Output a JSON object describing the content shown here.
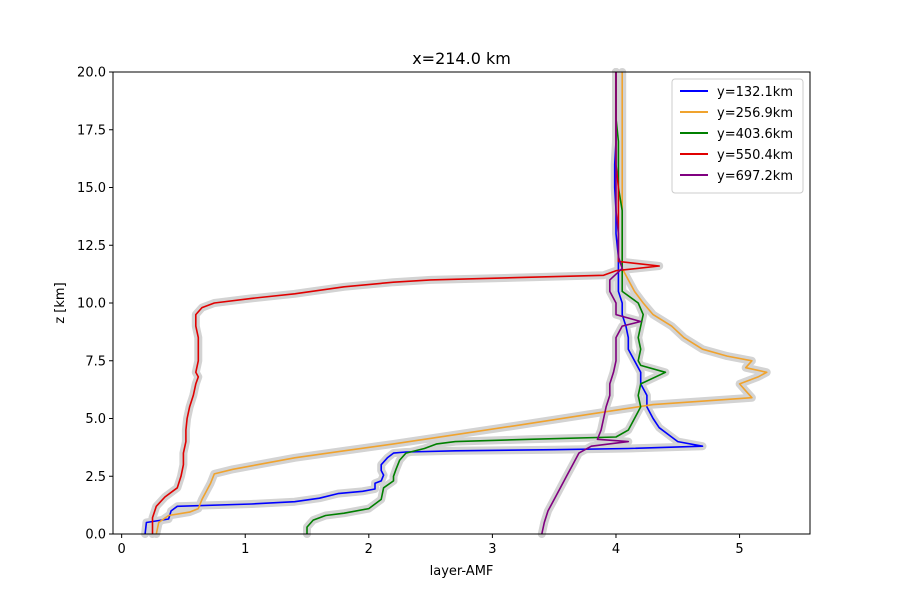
{
  "chart_data": {
    "type": "line",
    "title": "x=214.0 km",
    "xlabel": "layer-AMF",
    "ylabel": "z [km]",
    "xlim": [
      -0.07,
      5.57
    ],
    "ylim": [
      0,
      20
    ],
    "xticks": [
      0,
      1,
      2,
      3,
      4,
      5
    ],
    "xtick_labels": [
      "0",
      "1",
      "2",
      "3",
      "4",
      "5"
    ],
    "yticks": [
      0,
      2.5,
      5,
      7.5,
      10,
      12.5,
      15,
      17.5,
      20
    ],
    "ytick_labels": [
      "0.0",
      "2.5",
      "5.0",
      "7.5",
      "10.0",
      "12.5",
      "15.0",
      "17.5",
      "20.0"
    ],
    "grid": false,
    "legend_position": "top-right",
    "uncertainty_band_color": "#d3d3d3",
    "series": [
      {
        "name": "y=132.1km",
        "color": "#0000ff",
        "points": [
          [
            0.19,
            0
          ],
          [
            0.2,
            0.5
          ],
          [
            0.38,
            0.65
          ],
          [
            0.4,
            1.0
          ],
          [
            0.45,
            1.2
          ],
          [
            1.05,
            1.3
          ],
          [
            1.4,
            1.4
          ],
          [
            1.6,
            1.55
          ],
          [
            1.75,
            1.75
          ],
          [
            1.95,
            1.85
          ],
          [
            2.05,
            1.95
          ],
          [
            2.05,
            2.2
          ],
          [
            2.1,
            2.3
          ],
          [
            2.12,
            2.55
          ],
          [
            2.1,
            2.75
          ],
          [
            2.1,
            3.0
          ],
          [
            2.15,
            3.3
          ],
          [
            2.2,
            3.5
          ],
          [
            2.3,
            3.55
          ],
          [
            2.7,
            3.6
          ],
          [
            3.5,
            3.65
          ],
          [
            4.1,
            3.7
          ],
          [
            4.7,
            3.8
          ],
          [
            4.5,
            4.0
          ],
          [
            4.45,
            4.2
          ],
          [
            4.35,
            4.6
          ],
          [
            4.3,
            5.0
          ],
          [
            4.25,
            5.5
          ],
          [
            4.25,
            6.0
          ],
          [
            4.2,
            6.5
          ],
          [
            4.2,
            7.0
          ],
          [
            4.15,
            7.5
          ],
          [
            4.1,
            8.0
          ],
          [
            4.1,
            8.5
          ],
          [
            4.08,
            9.0
          ],
          [
            4.05,
            9.5
          ],
          [
            4.05,
            10.0
          ],
          [
            4.02,
            10.5
          ],
          [
            4.02,
            11.0
          ],
          [
            4.02,
            12.0
          ],
          [
            4.0,
            13.0
          ],
          [
            4.0,
            14.0
          ],
          [
            3.99,
            15.0
          ],
          [
            3.99,
            16.0
          ],
          [
            4.0,
            17.0
          ],
          [
            4.0,
            18.0
          ],
          [
            4.0,
            19.0
          ],
          [
            4.0,
            20.0
          ]
        ]
      },
      {
        "name": "y=256.9km",
        "color": "#f0a32e",
        "points": [
          [
            0.28,
            0
          ],
          [
            0.3,
            0.5
          ],
          [
            0.38,
            0.8
          ],
          [
            0.55,
            0.95
          ],
          [
            0.62,
            1.1
          ],
          [
            0.65,
            1.5
          ],
          [
            0.72,
            2.2
          ],
          [
            0.75,
            2.6
          ],
          [
            0.9,
            2.8
          ],
          [
            1.1,
            3.0
          ],
          [
            1.4,
            3.3
          ],
          [
            1.8,
            3.6
          ],
          [
            2.2,
            3.9
          ],
          [
            2.7,
            4.3
          ],
          [
            3.2,
            4.7
          ],
          [
            3.8,
            5.2
          ],
          [
            4.3,
            5.6
          ],
          [
            5.1,
            5.9
          ],
          [
            5.05,
            6.2
          ],
          [
            5.0,
            6.5
          ],
          [
            5.15,
            6.8
          ],
          [
            5.22,
            7.0
          ],
          [
            5.05,
            7.2
          ],
          [
            5.1,
            7.5
          ],
          [
            4.9,
            7.7
          ],
          [
            4.7,
            8.0
          ],
          [
            4.55,
            8.5
          ],
          [
            4.45,
            9.0
          ],
          [
            4.3,
            9.5
          ],
          [
            4.22,
            10.0
          ],
          [
            4.15,
            10.5
          ],
          [
            4.1,
            11.0
          ],
          [
            4.05,
            11.5
          ],
          [
            4.05,
            12.0
          ],
          [
            4.05,
            13.0
          ],
          [
            4.05,
            14.0
          ],
          [
            4.05,
            15.0
          ],
          [
            4.05,
            16.0
          ],
          [
            4.05,
            17.0
          ],
          [
            4.05,
            18.0
          ],
          [
            4.05,
            19.0
          ],
          [
            4.05,
            20.0
          ]
        ]
      },
      {
        "name": "y=403.6km",
        "color": "#008000",
        "points": [
          [
            1.5,
            0
          ],
          [
            1.5,
            0.3
          ],
          [
            1.55,
            0.6
          ],
          [
            1.65,
            0.8
          ],
          [
            1.8,
            0.9
          ],
          [
            2.0,
            1.1
          ],
          [
            2.1,
            1.5
          ],
          [
            2.12,
            2.0
          ],
          [
            2.2,
            2.3
          ],
          [
            2.2,
            2.5
          ],
          [
            2.22,
            2.8
          ],
          [
            2.25,
            3.2
          ],
          [
            2.3,
            3.5
          ],
          [
            2.45,
            3.7
          ],
          [
            2.55,
            3.9
          ],
          [
            2.7,
            4.0
          ],
          [
            3.3,
            4.1
          ],
          [
            4.0,
            4.2
          ],
          [
            4.1,
            4.5
          ],
          [
            4.15,
            5.0
          ],
          [
            4.2,
            5.5
          ],
          [
            4.18,
            6.0
          ],
          [
            4.2,
            6.5
          ],
          [
            4.4,
            7.0
          ],
          [
            4.2,
            7.3
          ],
          [
            4.18,
            7.5
          ],
          [
            4.2,
            8.0
          ],
          [
            4.18,
            8.5
          ],
          [
            4.2,
            9.0
          ],
          [
            4.22,
            9.5
          ],
          [
            4.18,
            10.0
          ],
          [
            4.05,
            10.5
          ],
          [
            4.05,
            11.0
          ],
          [
            4.05,
            12.0
          ],
          [
            4.05,
            13.0
          ],
          [
            4.05,
            14.0
          ],
          [
            4.02,
            15.0
          ],
          [
            4.02,
            16.0
          ],
          [
            4.02,
            17.0
          ],
          [
            4.0,
            18.0
          ],
          [
            4.0,
            19.0
          ],
          [
            4.0,
            20.0
          ]
        ]
      },
      {
        "name": "y=550.4km",
        "color": "#e00000",
        "points": [
          [
            0.25,
            0
          ],
          [
            0.25,
            0.7
          ],
          [
            0.28,
            1.2
          ],
          [
            0.35,
            1.6
          ],
          [
            0.45,
            2.0
          ],
          [
            0.48,
            2.5
          ],
          [
            0.5,
            3.0
          ],
          [
            0.5,
            3.5
          ],
          [
            0.52,
            4.0
          ],
          [
            0.52,
            4.5
          ],
          [
            0.53,
            5.0
          ],
          [
            0.55,
            5.5
          ],
          [
            0.58,
            6.0
          ],
          [
            0.6,
            6.5
          ],
          [
            0.62,
            6.8
          ],
          [
            0.6,
            7.0
          ],
          [
            0.62,
            7.5
          ],
          [
            0.62,
            8.0
          ],
          [
            0.62,
            8.5
          ],
          [
            0.6,
            9.0
          ],
          [
            0.6,
            9.5
          ],
          [
            0.65,
            9.8
          ],
          [
            0.75,
            10.0
          ],
          [
            1.05,
            10.2
          ],
          [
            1.4,
            10.4
          ],
          [
            1.8,
            10.7
          ],
          [
            2.2,
            10.9
          ],
          [
            2.5,
            11.0
          ],
          [
            3.2,
            11.1
          ],
          [
            3.9,
            11.2
          ],
          [
            4.0,
            11.4
          ],
          [
            4.35,
            11.6
          ],
          [
            4.02,
            11.8
          ],
          [
            4.02,
            12.0
          ],
          [
            4.02,
            13.0
          ],
          [
            4.02,
            14.0
          ],
          [
            4.02,
            15.0
          ],
          [
            4.0,
            16.0
          ],
          [
            4.0,
            17.0
          ],
          [
            4.0,
            18.0
          ],
          [
            4.0,
            19.0
          ],
          [
            4.0,
            20.0
          ]
        ]
      },
      {
        "name": "y=697.2km",
        "color": "#800080",
        "points": [
          [
            3.4,
            0
          ],
          [
            3.42,
            0.5
          ],
          [
            3.45,
            1.0
          ],
          [
            3.5,
            1.5
          ],
          [
            3.55,
            2.0
          ],
          [
            3.6,
            2.5
          ],
          [
            3.65,
            3.0
          ],
          [
            3.7,
            3.5
          ],
          [
            3.8,
            3.8
          ],
          [
            4.1,
            4.0
          ],
          [
            3.85,
            4.1
          ],
          [
            3.88,
            4.5
          ],
          [
            3.9,
            5.0
          ],
          [
            3.92,
            5.5
          ],
          [
            3.95,
            6.0
          ],
          [
            3.95,
            6.5
          ],
          [
            3.98,
            7.0
          ],
          [
            4.0,
            7.5
          ],
          [
            4.0,
            8.0
          ],
          [
            4.0,
            8.5
          ],
          [
            4.05,
            9.0
          ],
          [
            4.2,
            9.2
          ],
          [
            4.0,
            9.5
          ],
          [
            4.0,
            10.0
          ],
          [
            3.95,
            10.5
          ],
          [
            3.95,
            11.0
          ],
          [
            4.05,
            11.5
          ],
          [
            4.02,
            12.0
          ],
          [
            4.02,
            13.0
          ],
          [
            4.0,
            14.0
          ],
          [
            4.0,
            15.0
          ],
          [
            4.0,
            16.0
          ],
          [
            4.0,
            17.0
          ],
          [
            4.0,
            18.0
          ],
          [
            4.0,
            19.0
          ],
          [
            4.0,
            20.0
          ]
        ]
      }
    ]
  }
}
